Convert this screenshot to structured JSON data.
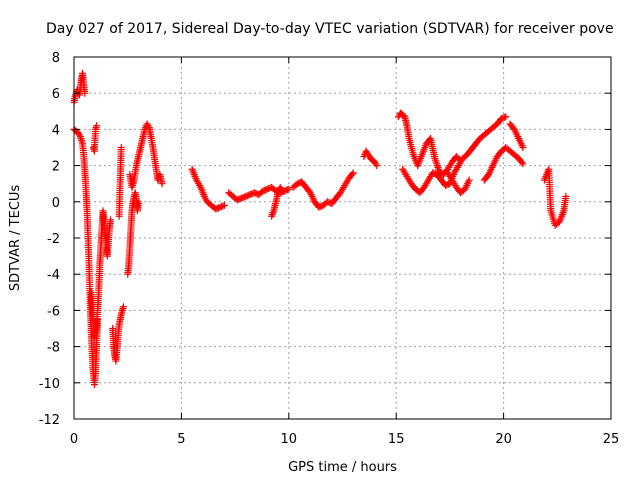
{
  "chart_data": {
    "type": "scatter",
    "title": "Day 027 of 2017, Sidereal Day-to-day VTEC variation (SDTVAR) for receiver pove",
    "xlabel": "GPS time / hours",
    "ylabel": "SDTVAR / TECUs",
    "xlim": [
      0,
      25
    ],
    "ylim": [
      -12,
      8
    ],
    "xticks": [
      0,
      5,
      10,
      15,
      20,
      25
    ],
    "yticks": [
      -12,
      -10,
      -8,
      -6,
      -4,
      -2,
      0,
      2,
      4,
      6,
      8
    ],
    "grid": true,
    "marker": "+",
    "color": "#ff0000",
    "series": [
      {
        "name": "SDTVAR",
        "segments": [
          {
            "x": [
              0.0,
              0.05,
              0.1,
              0.15,
              0.2,
              0.25,
              0.3,
              0.35,
              0.4,
              0.45,
              0.5
            ],
            "y": [
              5.5,
              5.8,
              6.0,
              6.2,
              6.0,
              5.9,
              6.3,
              6.8,
              7.1,
              6.5,
              6.0
            ]
          },
          {
            "x": [
              0.0,
              0.1,
              0.2,
              0.3,
              0.4,
              0.45,
              0.5,
              0.55,
              0.6,
              0.65,
              0.7,
              0.75,
              0.8,
              0.85,
              0.9,
              0.95,
              1.0,
              1.05,
              1.1
            ],
            "y": [
              4.0,
              3.9,
              3.8,
              3.6,
              3.2,
              2.6,
              1.8,
              0.8,
              -0.3,
              -1.8,
              -3.5,
              -5.5,
              -7.0,
              -8.5,
              -9.5,
              -10.1,
              -9.5,
              -8.0,
              -6.5
            ]
          },
          {
            "x": [
              0.8,
              0.85,
              0.9,
              0.95,
              1.0,
              1.05,
              1.1,
              1.15,
              1.2,
              1.25,
              1.3,
              1.35,
              1.4,
              1.45,
              1.5,
              1.55,
              1.6,
              1.65,
              1.7
            ],
            "y": [
              -5.0,
              -6.0,
              -7.0,
              -7.5,
              -7.2,
              -6.8,
              -6.0,
              -5.0,
              -3.5,
              -2.5,
              -1.5,
              -0.5,
              -1.0,
              -1.8,
              -2.5,
              -3.0,
              -2.2,
              -1.5,
              -1.0
            ]
          },
          {
            "x": [
              0.9,
              0.95,
              1.0,
              1.05
            ],
            "y": [
              3.0,
              2.8,
              4.0,
              4.2
            ]
          },
          {
            "x": [
              1.8,
              1.85,
              1.9,
              1.95,
              2.0,
              2.05,
              2.1,
              2.15,
              2.2,
              2.25,
              2.3
            ],
            "y": [
              -7.0,
              -8.0,
              -8.5,
              -8.8,
              -8.2,
              -7.5,
              -6.8,
              -6.5,
              -6.2,
              -6.0,
              -5.8
            ]
          },
          {
            "x": [
              2.1,
              2.2
            ],
            "y": [
              -0.8,
              3.0
            ]
          },
          {
            "x": [
              2.5,
              2.55,
              2.6,
              2.65,
              2.7,
              2.75,
              2.8,
              2.85,
              2.9,
              2.95,
              3.0
            ],
            "y": [
              -4.0,
              -3.5,
              -2.5,
              -1.5,
              -0.5,
              0.0,
              0.3,
              0.5,
              0.2,
              -0.5,
              0.0
            ]
          },
          {
            "x": [
              2.6,
              2.7,
              2.8,
              2.9,
              3.0,
              3.1,
              3.2,
              3.3,
              3.4,
              3.5,
              3.6,
              3.7,
              3.8,
              3.9,
              4.0,
              4.1
            ],
            "y": [
              1.5,
              0.8,
              1.2,
              2.0,
              2.5,
              3.0,
              3.5,
              4.0,
              4.3,
              4.1,
              3.5,
              2.8,
              2.0,
              1.2,
              1.5,
              1.0
            ]
          },
          {
            "x": [
              5.5,
              5.6,
              5.7,
              5.8,
              5.9,
              6.0,
              6.1,
              6.2,
              6.4,
              6.6,
              6.8,
              7.0
            ],
            "y": [
              1.8,
              1.5,
              1.2,
              1.0,
              0.8,
              0.5,
              0.2,
              0.0,
              -0.2,
              -0.4,
              -0.3,
              -0.2
            ]
          },
          {
            "x": [
              7.2,
              7.4,
              7.6,
              7.8,
              8.0,
              8.2,
              8.4,
              8.6,
              8.8,
              9.0,
              9.2,
              9.4,
              9.6,
              9.8,
              10.0
            ],
            "y": [
              0.5,
              0.3,
              0.1,
              0.2,
              0.3,
              0.4,
              0.5,
              0.4,
              0.6,
              0.7,
              0.8,
              0.6,
              0.5,
              0.6,
              0.7
            ]
          },
          {
            "x": [
              9.2,
              9.3,
              9.4,
              9.5,
              9.6,
              9.7
            ],
            "y": [
              -0.8,
              -0.5,
              0.0,
              0.5,
              0.8,
              0.6
            ]
          },
          {
            "x": [
              10.2,
              10.4,
              10.6,
              10.8,
              11.0,
              11.2,
              11.4,
              11.6,
              11.8,
              12.0,
              12.2,
              12.4,
              12.6,
              12.8,
              13.0
            ],
            "y": [
              0.8,
              1.0,
              1.1,
              0.8,
              0.5,
              0.0,
              -0.3,
              -0.2,
              0.0,
              -0.1,
              0.2,
              0.5,
              0.9,
              1.3,
              1.6
            ]
          },
          {
            "x": [
              13.5,
              13.6,
              13.7,
              13.8,
              13.9,
              14.0,
              14.1
            ],
            "y": [
              2.5,
              2.8,
              2.6,
              2.4,
              2.3,
              2.2,
              2.0
            ]
          },
          {
            "x": [
              15.1,
              15.2,
              15.3,
              15.4,
              15.5,
              15.6,
              15.8,
              16.0,
              16.2,
              16.4,
              16.6,
              16.8,
              17.0,
              17.2,
              17.4,
              17.6,
              17.8,
              18.0
            ],
            "y": [
              4.7,
              4.9,
              4.8,
              4.7,
              4.2,
              3.5,
              2.6,
              2.0,
              2.6,
              3.2,
              3.5,
              2.4,
              1.7,
              1.5,
              1.8,
              2.2,
              2.5,
              2.3
            ]
          },
          {
            "x": [
              15.3,
              15.5,
              15.7,
              15.9,
              16.1,
              16.3,
              16.5,
              16.7,
              16.9,
              17.1,
              17.3,
              17.5,
              17.7,
              17.9,
              18.1,
              18.3,
              18.5,
              18.7,
              18.9,
              19.1,
              19.3,
              19.5,
              19.7,
              19.9,
              20.1
            ],
            "y": [
              1.8,
              1.4,
              1.0,
              0.7,
              0.5,
              0.8,
              1.2,
              1.6,
              1.5,
              1.2,
              0.9,
              1.0,
              1.6,
              2.0,
              2.4,
              2.6,
              2.9,
              3.2,
              3.5,
              3.7,
              3.9,
              4.1,
              4.3,
              4.6,
              4.7
            ]
          },
          {
            "x": [
              17.4,
              17.6,
              17.8,
              18.0,
              18.2,
              18.4
            ],
            "y": [
              1.6,
              1.2,
              0.8,
              0.5,
              0.7,
              1.2
            ]
          },
          {
            "x": [
              19.1,
              19.3,
              19.5,
              19.7,
              19.9,
              20.1,
              20.3,
              20.5,
              20.7,
              20.9
            ],
            "y": [
              1.2,
              1.5,
              2.0,
              2.5,
              2.8,
              3.0,
              2.8,
              2.6,
              2.4,
              2.1
            ]
          },
          {
            "x": [
              20.3,
              20.5,
              20.7,
              20.9
            ],
            "y": [
              4.3,
              4.0,
              3.5,
              3.0
            ]
          },
          {
            "x": [
              21.9,
              22.0,
              22.1,
              22.2,
              22.4,
              22.6,
              22.8,
              22.9
            ],
            "y": [
              1.2,
              1.5,
              1.8,
              -0.5,
              -1.3,
              -1.1,
              -0.5,
              0.3
            ]
          }
        ]
      }
    ]
  }
}
